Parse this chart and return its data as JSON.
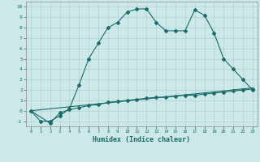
{
  "title": "",
  "xlabel": "Humidex (Indice chaleur)",
  "background_color": "#cce8e8",
  "grid_color": "#b0d0d0",
  "line_color": "#1a6b6b",
  "xlim": [
    -0.5,
    23.5
  ],
  "ylim": [
    -1.5,
    10.5
  ],
  "xticks": [
    0,
    1,
    2,
    3,
    4,
    5,
    6,
    7,
    8,
    9,
    10,
    11,
    12,
    13,
    14,
    15,
    16,
    17,
    18,
    19,
    20,
    21,
    22,
    23
  ],
  "yticks": [
    -1,
    0,
    1,
    2,
    3,
    4,
    5,
    6,
    7,
    8,
    9,
    10
  ],
  "line1_x": [
    0,
    1,
    2,
    3,
    4,
    5,
    6,
    7,
    8,
    9,
    10,
    11,
    12,
    13,
    14,
    15,
    16,
    17,
    18,
    19,
    20,
    21,
    22,
    23
  ],
  "line1_y": [
    0,
    -1,
    -1,
    -0.5,
    0.2,
    2.5,
    5,
    6.5,
    8,
    8.5,
    9.5,
    9.8,
    9.8,
    8.5,
    7.7,
    7.7,
    7.7,
    9.7,
    9.2,
    7.5,
    5,
    4,
    3,
    2
  ],
  "line2_x": [
    0,
    2,
    3,
    4,
    5,
    6,
    7,
    8,
    9,
    10,
    11,
    12,
    13,
    14,
    15,
    16,
    17,
    18,
    19,
    20,
    21,
    22,
    23
  ],
  "line2_y": [
    0,
    -1.2,
    -0.2,
    0.1,
    0.3,
    0.5,
    0.6,
    0.8,
    0.9,
    1.0,
    1.1,
    1.2,
    1.3,
    1.3,
    1.4,
    1.5,
    1.5,
    1.6,
    1.7,
    1.8,
    1.9,
    2.0,
    2.1
  ],
  "line3_x": [
    0,
    23
  ],
  "line3_y": [
    0,
    2.2
  ]
}
